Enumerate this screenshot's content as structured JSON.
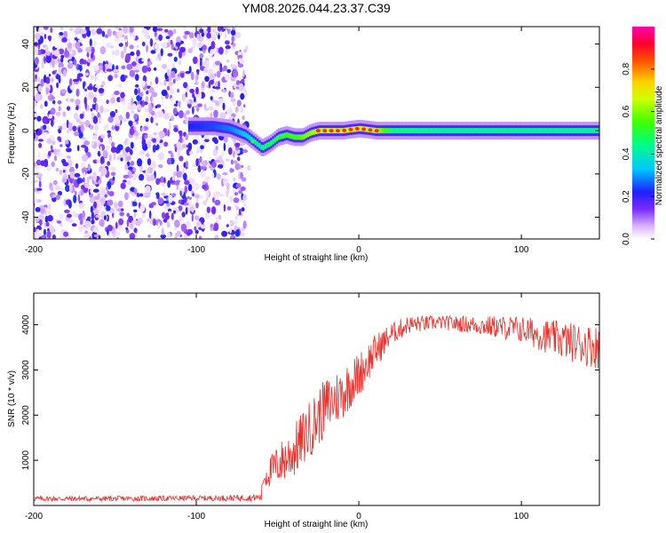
{
  "figure": {
    "title": "YM08.2026.044.23.37.C39"
  },
  "chart_data": [
    {
      "type": "heatmap",
      "xlabel": "Height of straight line (km)",
      "ylabel": "Frequency (Hz)",
      "xlim": [
        -200,
        148
      ],
      "ylim": [
        -50,
        48
      ],
      "xticks": [
        -200,
        -100,
        0,
        100
      ],
      "yticks": [
        -40,
        -20,
        0,
        20,
        40
      ],
      "noise_region_x": [
        -200,
        -70
      ],
      "ridge": {
        "x": [
          -105,
          -90,
          -80,
          -70,
          -65,
          -60,
          -55,
          -50,
          -45,
          -40,
          -35,
          -30,
          -25,
          -20,
          -10,
          0,
          10,
          20,
          50,
          100,
          148
        ],
        "y": [
          2,
          2,
          1,
          -2,
          -5,
          -8,
          -6,
          -3,
          -2,
          -3,
          -3,
          -1,
          0,
          0,
          0,
          1,
          0,
          0,
          0,
          0,
          0
        ],
        "amplitude": [
          0.2,
          0.25,
          0.3,
          0.4,
          0.5,
          0.55,
          0.6,
          0.65,
          0.7,
          0.75,
          0.8,
          0.85,
          0.9,
          0.95,
          0.95,
          0.95,
          0.9,
          0.6,
          0.55,
          0.55,
          0.55
        ]
      },
      "colorbar": {
        "label": "Normalized spectral amplitude",
        "range": [
          0,
          1
        ],
        "ticks": [
          "0.0",
          "0.2",
          "0.4",
          "0.6",
          "0.8"
        ]
      }
    },
    {
      "type": "line",
      "xlabel": "Height of straight line (km)",
      "ylabel": "SNR (10 * v/v)",
      "xlim": [
        -200,
        148
      ],
      "ylim": [
        0,
        4700
      ],
      "xticks": [
        -200,
        -100,
        0,
        100
      ],
      "yticks": [
        1000,
        2000,
        3000,
        4000
      ],
      "color": "#e8312a",
      "series": [
        {
          "name": "SNR",
          "x": [
            -200,
            -150,
            -100,
            -70,
            -60,
            -59,
            -50,
            -40,
            -30,
            -20,
            -10,
            0,
            10,
            20,
            30,
            50,
            70,
            100,
            120,
            148
          ],
          "y": [
            150,
            150,
            160,
            170,
            180,
            600,
            900,
            1200,
            1700,
            2200,
            2500,
            2900,
            3400,
            3800,
            4000,
            4050,
            4000,
            3900,
            3700,
            3500
          ],
          "noise": [
            60,
            60,
            60,
            70,
            80,
            250,
            450,
            600,
            650,
            650,
            600,
            500,
            400,
            250,
            200,
            150,
            200,
            300,
            400,
            500
          ]
        }
      ]
    }
  ]
}
